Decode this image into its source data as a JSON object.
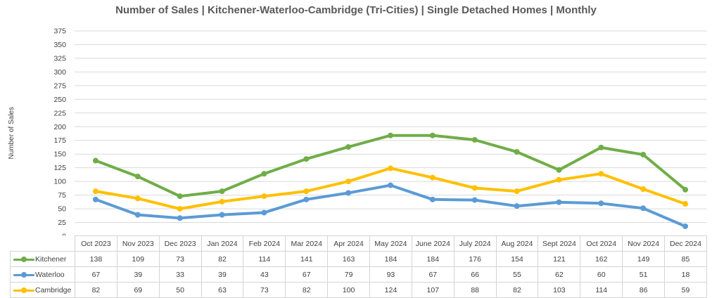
{
  "chart_data": {
    "type": "line",
    "title": "Number of Sales | Kitchener-Waterloo-Cambridge (Tri-Cities) | Single Detached Homes | Monthly",
    "xlabel": "",
    "ylabel": "Number of Sales",
    "ylim": [
      0,
      375
    ],
    "yticks": [
      "0",
      "25",
      "50",
      "75",
      "100",
      "125",
      "150",
      "175",
      "200",
      "225",
      "250",
      "275",
      "300",
      "325",
      "350",
      "375"
    ],
    "grid": true,
    "categories": [
      "Oct 2023",
      "Nov 2023",
      "Dec 2023",
      "Jan 2024",
      "Feb 2024",
      "Mar 2024",
      "Apr 2024",
      "May 2024",
      "June 2024",
      "July 2024",
      "Aug 2024",
      "Sept 2024",
      "Oct 2024",
      "Nov 2024",
      "Dec 2024"
    ],
    "series": [
      {
        "name": "Kitchener",
        "color": "#70ad47",
        "values": [
          138,
          109,
          73,
          82,
          114,
          141,
          163,
          184,
          184,
          176,
          154,
          121,
          162,
          149,
          85
        ]
      },
      {
        "name": "Waterloo",
        "color": "#5b9bd5",
        "values": [
          67,
          39,
          33,
          39,
          43,
          67,
          79,
          93,
          67,
          66,
          55,
          62,
          60,
          51,
          18
        ]
      },
      {
        "name": "Cambridge",
        "color": "#ffc000",
        "values": [
          82,
          69,
          50,
          63,
          73,
          82,
          100,
          124,
          107,
          88,
          82,
          103,
          114,
          86,
          59
        ]
      }
    ],
    "legend": "data-table-below"
  }
}
